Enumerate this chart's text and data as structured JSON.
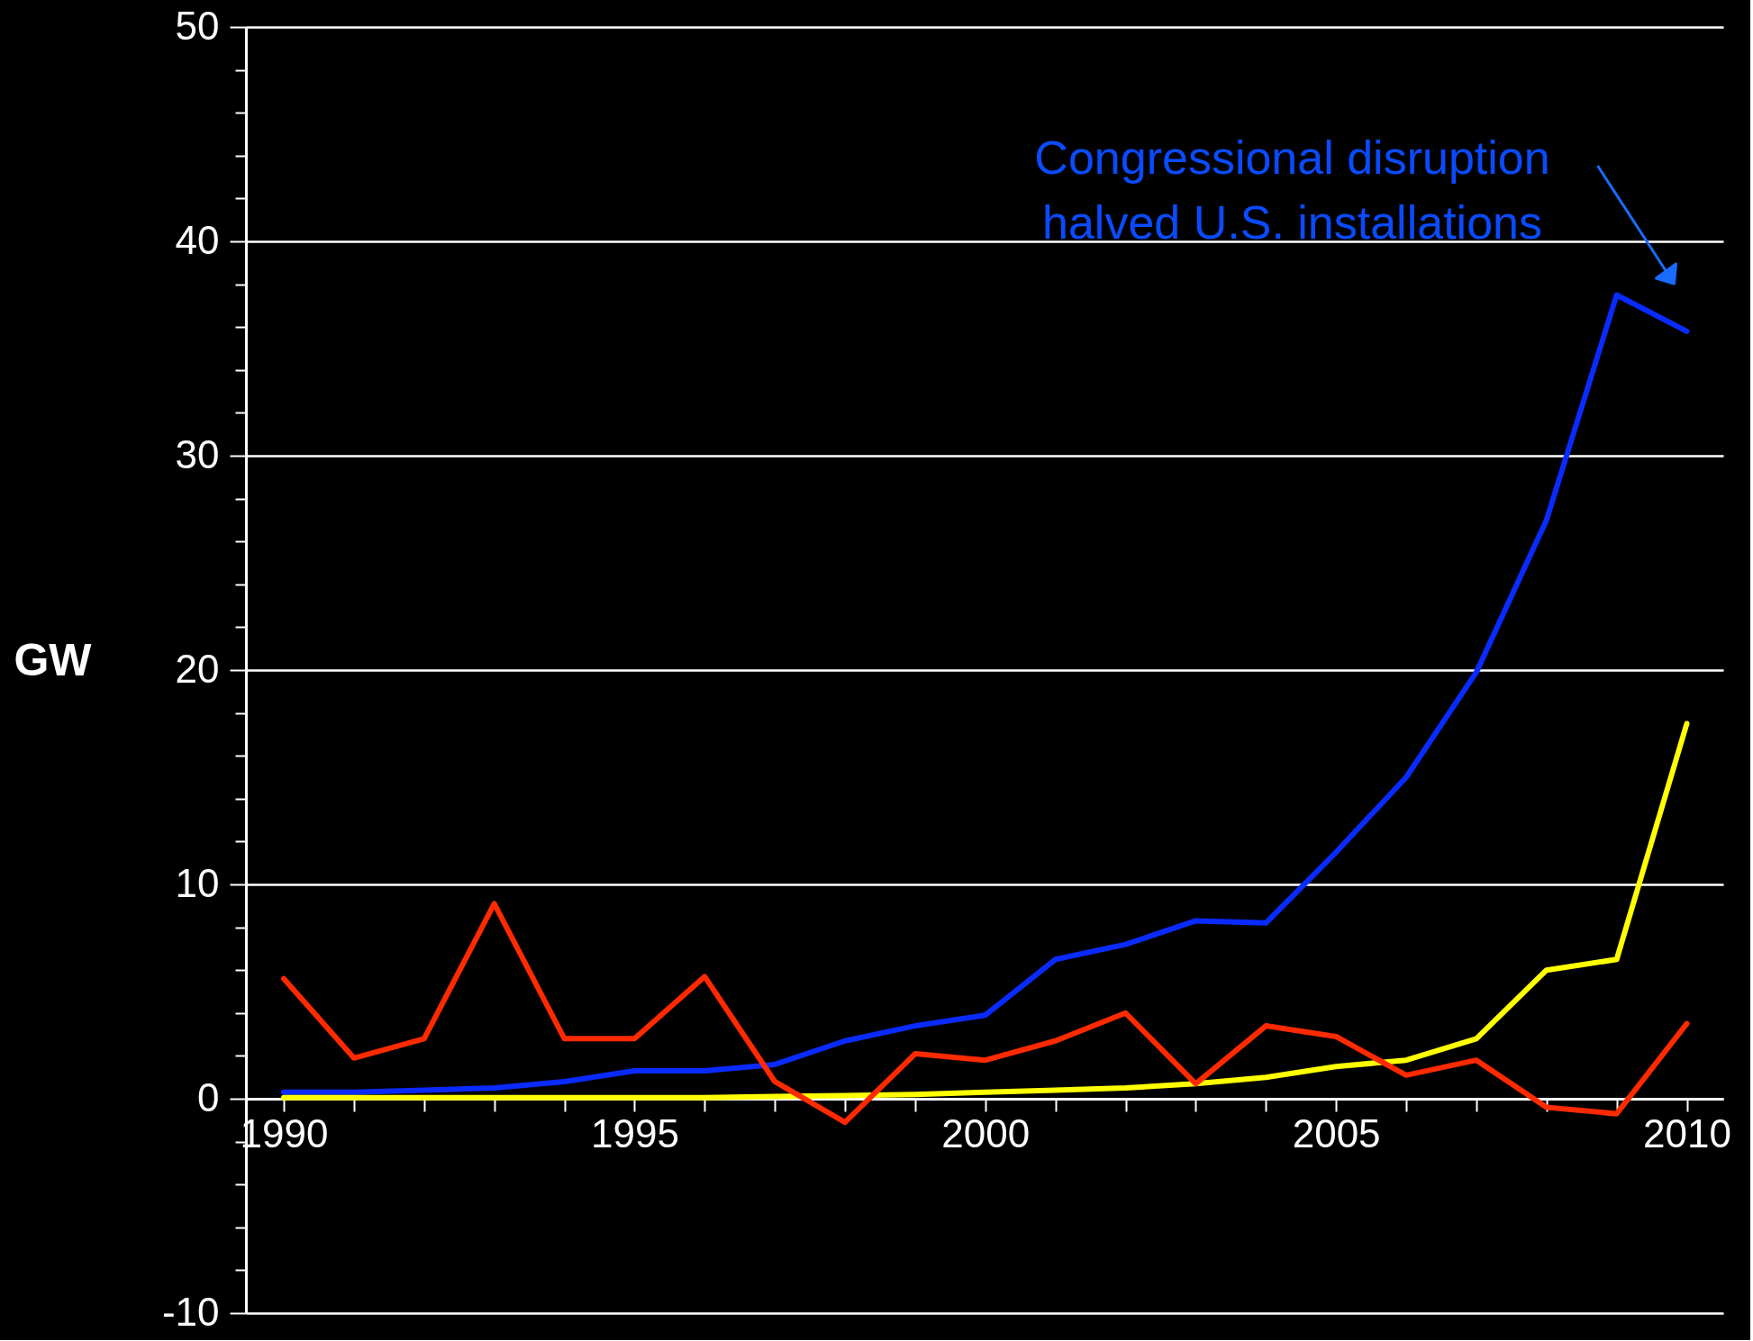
{
  "chart_data": {
    "type": "line",
    "ylabel": "GW",
    "x": [
      1990,
      1991,
      1992,
      1993,
      1994,
      1995,
      1996,
      1997,
      1998,
      1999,
      2000,
      2001,
      2002,
      2003,
      2004,
      2005,
      2006,
      2007,
      2008,
      2009,
      2010
    ],
    "series": [
      {
        "color": "#0a2bff",
        "values": [
          0.3,
          0.3,
          0.4,
          0.5,
          0.8,
          1.3,
          1.3,
          1.6,
          2.7,
          3.4,
          3.9,
          6.5,
          7.2,
          8.3,
          8.2,
          11.5,
          15.0,
          19.9,
          27.0,
          37.5,
          35.8
        ]
      },
      {
        "color": "#ffff00",
        "values": [
          0.05,
          0.05,
          0.05,
          0.05,
          0.05,
          0.05,
          0.05,
          0.1,
          0.15,
          0.2,
          0.3,
          0.4,
          0.5,
          0.7,
          1.0,
          1.5,
          1.8,
          2.8,
          6.0,
          6.5,
          17.5
        ]
      },
      {
        "color": "#ff2a00",
        "values": [
          5.6,
          1.9,
          2.8,
          9.1,
          2.8,
          2.8,
          5.7,
          0.8,
          -1.1,
          2.1,
          1.8,
          2.7,
          4.0,
          0.7,
          3.4,
          2.9,
          1.1,
          1.8,
          -0.4,
          -0.7,
          3.5
        ]
      }
    ],
    "xlim": [
      1989.46,
      2010.52
    ],
    "xticks": [
      1990,
      {
        "value": 1991,
        "label": null
      },
      {
        "value": 1992,
        "label": null
      },
      {
        "value": 1993,
        "label": null
      },
      {
        "value": 1994,
        "label": null
      },
      1995,
      {
        "value": 1996,
        "label": null
      },
      {
        "value": 1997,
        "label": null
      },
      {
        "value": 1998,
        "label": null
      },
      {
        "value": 1999,
        "label": null
      },
      2000,
      {
        "value": 2001,
        "label": null
      },
      {
        "value": 2002,
        "label": null
      },
      {
        "value": 2003,
        "label": null
      },
      {
        "value": 2004,
        "label": null
      },
      2005,
      {
        "value": 2006,
        "label": null
      },
      {
        "value": 2007,
        "label": null
      },
      {
        "value": 2008,
        "label": null
      },
      {
        "value": 2009,
        "label": null
      },
      2010
    ],
    "ylim": [
      -10,
      50
    ],
    "yticks": [
      -10,
      {
        "value": -8,
        "label": null
      },
      {
        "value": -6,
        "label": null
      },
      {
        "value": -4,
        "label": null
      },
      {
        "value": -2,
        "label": null
      },
      0,
      {
        "value": 2,
        "label": null
      },
      {
        "value": 4,
        "label": null
      },
      {
        "value": 6,
        "label": null
      },
      {
        "value": 8,
        "label": null
      },
      10,
      {
        "value": 12,
        "label": null
      },
      {
        "value": 14,
        "label": null
      },
      {
        "value": 16,
        "label": null
      },
      {
        "value": 18,
        "label": null
      },
      20,
      {
        "value": 22,
        "label": null
      },
      {
        "value": 24,
        "label": null
      },
      {
        "value": 26,
        "label": null
      },
      {
        "value": 28,
        "label": null
      },
      30,
      {
        "value": 32,
        "label": null
      },
      {
        "value": 34,
        "label": null
      },
      {
        "value": 36,
        "label": null
      },
      {
        "value": 38,
        "label": null
      },
      40,
      {
        "value": 42,
        "label": null
      },
      {
        "value": 44,
        "label": null
      },
      {
        "value": 46,
        "label": null
      },
      {
        "value": 48,
        "label": null
      },
      50
    ],
    "grid": "y",
    "marker": "none",
    "line_style": "solid",
    "annotations": [
      "Congressional disruption\nhalved U.S. installations"
    ]
  }
}
